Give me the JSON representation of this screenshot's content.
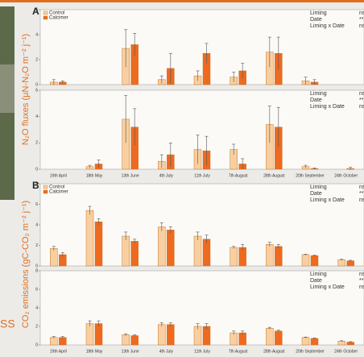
{
  "side_text": "SS",
  "chart_data": [
    {
      "type": "bar",
      "panel": "A",
      "ylabel": "N₂O fluxes (µN-N₂O m⁻² j⁻¹)",
      "ylim": [
        0,
        6
      ],
      "yticks": [
        0,
        2,
        4,
        6
      ],
      "series": [
        {
          "name": "Control",
          "color": "#f8cfa0",
          "values": [
            0.2,
            null,
            2.9,
            0.4,
            0.7,
            0.6,
            2.6,
            0.3,
            null
          ],
          "errors": [
            0.2,
            null,
            1.5,
            0.3,
            0.4,
            0.4,
            1.2,
            0.3,
            null
          ]
        },
        {
          "name": "Calcimer",
          "color": "#ee6a1f",
          "values": [
            0.2,
            null,
            3.2,
            1.3,
            2.5,
            1.1,
            2.5,
            0.2,
            null
          ],
          "errors": [
            0.1,
            null,
            0.9,
            1.2,
            0.8,
            0.6,
            1.3,
            0.2,
            null
          ]
        }
      ],
      "stats": [
        {
          "label": "Liming",
          "value": "ns"
        },
        {
          "label": "Date",
          "value": "**"
        },
        {
          "label": "Liming x Date",
          "value": "ns"
        }
      ]
    },
    {
      "type": "bar",
      "ylim": [
        0,
        6
      ],
      "yticks": [
        0,
        2,
        4,
        6
      ],
      "categories": [
        "19th April",
        "18th May",
        "13th June",
        "4th July",
        "11th July",
        "7th August",
        "28th August",
        "20th September",
        "24th October"
      ],
      "series": [
        {
          "name": "Control",
          "color": "#f8cfa0",
          "values": [
            null,
            0.2,
            3.8,
            0.6,
            1.5,
            1.5,
            3.4,
            0.2,
            null
          ],
          "errors": [
            null,
            0.1,
            1.8,
            0.5,
            1.1,
            0.4,
            1.4,
            0.1,
            null
          ]
        },
        {
          "name": "Calcimer",
          "color": "#ee6a1f",
          "values": [
            null,
            0.4,
            3.2,
            1.1,
            1.4,
            0.4,
            3.2,
            0.05,
            0.05
          ],
          "errors": [
            null,
            0.3,
            1.4,
            0.9,
            1.1,
            0.4,
            1.5,
            0.05,
            0.1
          ]
        }
      ],
      "stats": [
        {
          "label": "Liming",
          "value": "ns"
        },
        {
          "label": "Date",
          "value": "**"
        },
        {
          "label": "Liming x Date",
          "value": "ns"
        }
      ]
    },
    {
      "type": "bar",
      "panel": "B",
      "ylabel": "CO₂ emissions (gC-CO₂ m⁻² j⁻¹)",
      "ylim": [
        0,
        8
      ],
      "yticks": [
        0,
        2,
        4,
        6,
        8
      ],
      "series": [
        {
          "name": "Control",
          "color": "#f8cfa0",
          "values": [
            1.7,
            5.4,
            2.9,
            3.8,
            2.9,
            1.8,
            2.1,
            1.1,
            0.6
          ],
          "errors": [
            0.2,
            0.4,
            0.4,
            0.4,
            0.4,
            0.1,
            0.2,
            0.05,
            0.05
          ]
        },
        {
          "name": "Calcimer",
          "color": "#ee6a1f",
          "values": [
            1.1,
            4.3,
            2.4,
            3.5,
            2.6,
            1.8,
            1.9,
            1.0,
            0.5
          ],
          "errors": [
            0.2,
            0.3,
            0.2,
            0.3,
            0.4,
            0.3,
            0.2,
            0.05,
            0.05
          ]
        }
      ],
      "stats": [
        {
          "label": "Liming",
          "value": "ns"
        },
        {
          "label": "Date",
          "value": "**"
        },
        {
          "label": "Liming x Date",
          "value": "ns"
        }
      ]
    },
    {
      "type": "bar",
      "ylim": [
        0,
        8
      ],
      "yticks": [
        0,
        2,
        4,
        6,
        8
      ],
      "categories": [
        "19th April",
        "18th May",
        "13th June",
        "4th July",
        "11th July",
        "7th August",
        "28th August",
        "20th September",
        "24th October"
      ],
      "series": [
        {
          "name": "Control",
          "color": "#f8cfa0",
          "values": [
            0.8,
            2.3,
            1.1,
            2.2,
            2.0,
            1.3,
            1.8,
            0.8,
            0.4
          ],
          "errors": [
            0.1,
            0.3,
            0.1,
            0.2,
            0.3,
            0.2,
            0.1,
            0.05,
            0.05
          ]
        },
        {
          "name": "Calcimer",
          "color": "#ee6a1f",
          "values": [
            0.8,
            2.3,
            1.0,
            2.2,
            2.0,
            1.3,
            1.5,
            0.7,
            0.3
          ],
          "errors": [
            0.1,
            0.3,
            0.1,
            0.2,
            0.3,
            0.2,
            0.1,
            0.05,
            0.05
          ]
        }
      ],
      "stats": [
        {
          "label": "Liming",
          "value": "ns"
        },
        {
          "label": "Date",
          "value": "**"
        },
        {
          "label": "Liming x Date",
          "value": "ns"
        }
      ]
    }
  ]
}
